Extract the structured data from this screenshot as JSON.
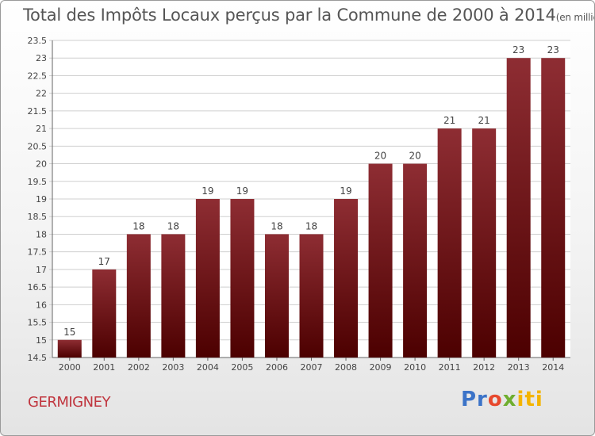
{
  "header": {
    "title": "Total des Impôts Locaux perçus par la Commune de 2000 à 2014",
    "unit": "(en milliers d'€)"
  },
  "commune": "GERMIGNEY",
  "logo": {
    "parts": [
      "Pr",
      "o",
      "x",
      "iti"
    ]
  },
  "colors": {
    "bar_top": "#8e2d33",
    "bar_bottom": "#4c0000",
    "grid": "#cfcfcf"
  },
  "chart_data": {
    "type": "bar",
    "title": "Total des Impôts Locaux perçus par la Commune de 2000 à 2014",
    "unit": "(en milliers d'€)",
    "categories": [
      "2000",
      "2001",
      "2002",
      "2003",
      "2004",
      "2005",
      "2006",
      "2007",
      "2008",
      "2009",
      "2010",
      "2011",
      "2012",
      "2013",
      "2014"
    ],
    "values": [
      15,
      17,
      18,
      18,
      19,
      19,
      18,
      18,
      19,
      20,
      20,
      21,
      21,
      23,
      23
    ],
    "ylim": [
      14.5,
      23.5
    ],
    "yticks": [
      "14.5",
      "15",
      "15.5",
      "16",
      "16.5",
      "17",
      "17.5",
      "18",
      "18.5",
      "19",
      "19.5",
      "20",
      "20.5",
      "21",
      "21.5",
      "22",
      "22.5",
      "23",
      "23.5"
    ],
    "grid": true
  }
}
